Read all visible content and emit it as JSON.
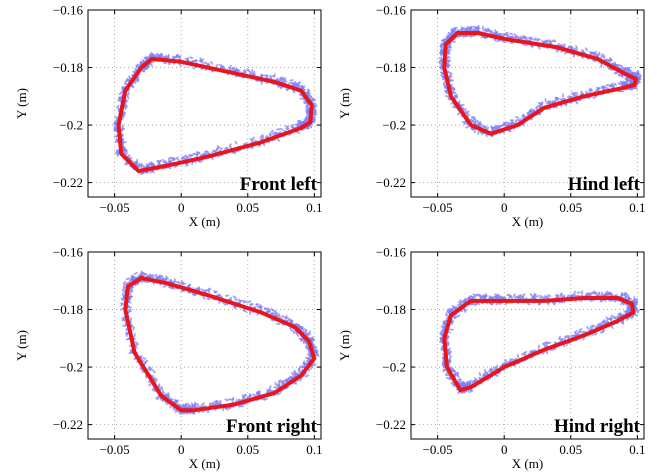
{
  "chart_data": [
    {
      "type": "line",
      "label": "Front left",
      "xlabel": "X (m)",
      "ylabel": "Y (m)",
      "xlim": [
        -0.07,
        0.105
      ],
      "ylim": [
        -0.225,
        -0.16
      ],
      "xticks": [
        -0.05,
        0,
        0.05,
        0.1
      ],
      "xtick_labels": [
        "−0.05",
        "0",
        "0.05",
        "0.1"
      ],
      "yticks": [
        -0.16,
        -0.18,
        -0.2,
        -0.22
      ],
      "ytick_labels": [
        "−0.16",
        "−0.18",
        "−0.2",
        "−0.22"
      ],
      "grid": true,
      "colors": {
        "mean": "#e8161c",
        "samples": "#7f7ff5"
      },
      "series": [
        {
          "role": "mean",
          "x": [
            -0.022,
            0.0,
            0.04,
            0.07,
            0.09,
            0.098,
            0.097,
            0.09,
            0.06,
            0.02,
            -0.01,
            -0.032,
            -0.045,
            -0.047,
            -0.042,
            -0.03,
            -0.022
          ],
          "y": [
            -0.177,
            -0.178,
            -0.182,
            -0.185,
            -0.188,
            -0.193,
            -0.199,
            -0.201,
            -0.206,
            -0.211,
            -0.214,
            -0.216,
            -0.21,
            -0.2,
            -0.188,
            -0.18,
            -0.177
          ]
        }
      ]
    },
    {
      "type": "line",
      "label": "Hind left",
      "xlabel": "X (m)",
      "ylabel": "Y (m)",
      "xlim": [
        -0.07,
        0.105
      ],
      "ylim": [
        -0.225,
        -0.16
      ],
      "xticks": [
        -0.05,
        0,
        0.05,
        0.1
      ],
      "xtick_labels": [
        "−0.05",
        "0",
        "0.05",
        "0.1"
      ],
      "yticks": [
        -0.16,
        -0.18,
        -0.2,
        -0.22
      ],
      "ytick_labels": [
        "−0.16",
        "−0.18",
        "−0.2",
        "−0.22"
      ],
      "grid": true,
      "colors": {
        "mean": "#e8161c",
        "samples": "#7f7ff5"
      },
      "series": [
        {
          "role": "mean",
          "x": [
            -0.035,
            -0.02,
            0.0,
            0.04,
            0.07,
            0.09,
            0.099,
            0.098,
            0.09,
            0.06,
            0.03,
            0.01,
            -0.01,
            -0.025,
            -0.04,
            -0.045,
            -0.044,
            -0.035
          ],
          "y": [
            -0.168,
            -0.168,
            -0.17,
            -0.173,
            -0.177,
            -0.182,
            -0.184,
            -0.186,
            -0.187,
            -0.19,
            -0.194,
            -0.2,
            -0.203,
            -0.2,
            -0.19,
            -0.18,
            -0.172,
            -0.168
          ]
        }
      ]
    },
    {
      "type": "line",
      "label": "Front right",
      "xlabel": "X (m)",
      "ylabel": "Y (m)",
      "xlim": [
        -0.07,
        0.105
      ],
      "ylim": [
        -0.225,
        -0.16
      ],
      "xticks": [
        -0.05,
        0,
        0.05,
        0.1
      ],
      "xtick_labels": [
        "−0.05",
        "0",
        "0.05",
        "0.1"
      ],
      "yticks": [
        -0.16,
        -0.18,
        -0.2,
        -0.22
      ],
      "ytick_labels": [
        "−0.16",
        "−0.18",
        "−0.2",
        "−0.22"
      ],
      "grid": true,
      "colors": {
        "mean": "#e8161c",
        "samples": "#7f7ff5"
      },
      "series": [
        {
          "role": "mean",
          "x": [
            -0.03,
            -0.01,
            0.02,
            0.06,
            0.085,
            0.096,
            0.1,
            0.09,
            0.07,
            0.04,
            0.01,
            0.0,
            -0.015,
            -0.035,
            -0.042,
            -0.04,
            -0.03
          ],
          "y": [
            -0.169,
            -0.171,
            -0.175,
            -0.181,
            -0.186,
            -0.191,
            -0.197,
            -0.203,
            -0.209,
            -0.213,
            -0.215,
            -0.215,
            -0.21,
            -0.195,
            -0.18,
            -0.172,
            -0.169
          ]
        }
      ]
    },
    {
      "type": "line",
      "label": "Hind right",
      "xlabel": "X (m)",
      "ylabel": "Y (m)",
      "xlim": [
        -0.07,
        0.105
      ],
      "ylim": [
        -0.225,
        -0.16
      ],
      "xticks": [
        -0.05,
        0,
        0.05,
        0.1
      ],
      "xtick_labels": [
        "−0.05",
        "0",
        "0.05",
        "0.1"
      ],
      "yticks": [
        -0.16,
        -0.18,
        -0.2,
        -0.22
      ],
      "ytick_labels": [
        "−0.16",
        "−0.18",
        "−0.2",
        "−0.22"
      ],
      "grid": true,
      "colors": {
        "mean": "#e8161c",
        "samples": "#7f7ff5"
      },
      "series": [
        {
          "role": "mean",
          "x": [
            -0.025,
            -0.005,
            0.03,
            0.06,
            0.085,
            0.096,
            0.097,
            0.085,
            0.06,
            0.03,
            0.0,
            -0.025,
            -0.033,
            -0.043,
            -0.045,
            -0.04,
            -0.025
          ],
          "y": [
            -0.177,
            -0.177,
            -0.177,
            -0.176,
            -0.176,
            -0.178,
            -0.181,
            -0.184,
            -0.189,
            -0.194,
            -0.2,
            -0.207,
            -0.208,
            -0.2,
            -0.19,
            -0.182,
            -0.177
          ]
        }
      ]
    }
  ]
}
